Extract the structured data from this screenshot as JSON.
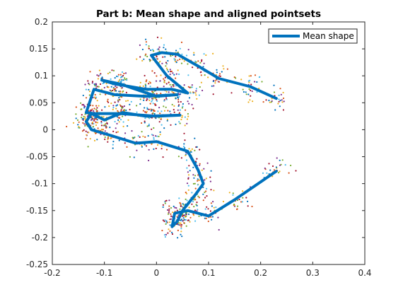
{
  "chart_data": {
    "type": "line",
    "title": "Part b: Mean shape and aligned pointsets",
    "xlabel": "",
    "ylabel": "",
    "xlim": [
      -0.2,
      0.4
    ],
    "ylim": [
      -0.25,
      0.2
    ],
    "xticks": [
      -0.2,
      -0.1,
      0,
      0.1,
      0.2,
      0.3,
      0.4
    ],
    "yticks": [
      0.2,
      0.15,
      0.1,
      0.05,
      0,
      -0.05,
      -0.1,
      -0.15,
      -0.2,
      -0.25
    ],
    "grid": false,
    "legend": {
      "placement": "top-right",
      "entries": [
        "Mean shape"
      ]
    },
    "series": [
      {
        "name": "Mean shape",
        "color": "#0072BD",
        "x": [
          0.23,
          0.18,
          0.12,
          0.08,
          0.04,
          0.01,
          -0.01,
          0.02,
          0.06,
          0.03,
          -0.02,
          -0.08,
          -0.105,
          -0.07,
          0.0,
          0.04,
          -0.02,
          -0.08,
          -0.12,
          -0.135,
          -0.12,
          -0.07,
          0.0,
          0.045,
          -0.02,
          -0.065,
          -0.1,
          -0.125,
          -0.135,
          -0.125,
          -0.09,
          -0.04,
          0.0,
          0.06,
          0.08,
          0.09,
          0.075,
          0.05,
          0.04,
          0.03,
          0.035,
          0.06,
          0.1,
          0.15,
          0.23
        ],
        "y": [
          0.058,
          0.08,
          0.095,
          0.118,
          0.14,
          0.143,
          0.138,
          0.1,
          0.068,
          0.075,
          0.075,
          0.085,
          0.092,
          0.085,
          0.062,
          0.065,
          0.062,
          0.065,
          0.075,
          0.032,
          0.03,
          0.03,
          0.025,
          0.027,
          0.025,
          0.032,
          0.018,
          0.03,
          0.015,
          0.0,
          -0.01,
          -0.025,
          -0.022,
          -0.04,
          -0.075,
          -0.1,
          -0.12,
          -0.15,
          -0.17,
          -0.18,
          -0.155,
          -0.15,
          -0.16,
          -0.13,
          -0.077
        ]
      }
    ]
  }
}
